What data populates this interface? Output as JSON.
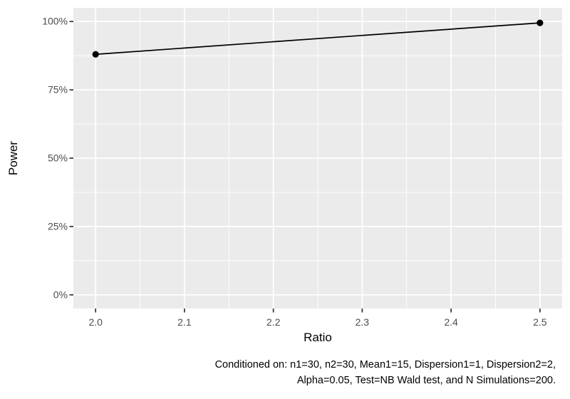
{
  "chart_data": {
    "type": "line",
    "xlabel": "Ratio",
    "ylabel": "Power",
    "x": [
      2.0,
      2.5
    ],
    "series": [
      {
        "name": "Power",
        "values_pct": [
          88,
          99.5
        ],
        "color": "#000000"
      }
    ],
    "x_tick_values": [
      2.0,
      2.1,
      2.2,
      2.3,
      2.4,
      2.5
    ],
    "x_tick_labels": [
      "2.0",
      "2.1",
      "2.2",
      "2.3",
      "2.4",
      "2.5"
    ],
    "y_tick_values_pct": [
      0,
      25,
      50,
      75,
      100
    ],
    "y_tick_labels": [
      "0%",
      "25%",
      "50%",
      "75%",
      "100%"
    ],
    "x_minor_values": [
      2.05,
      2.15,
      2.25,
      2.35,
      2.45
    ],
    "y_minor_values_pct": [
      12.5,
      37.5,
      62.5,
      87.5
    ],
    "xlim_expanded": [
      1.975,
      2.525
    ],
    "ylim_expanded_pct": [
      -5,
      105
    ],
    "grid": "major+minor",
    "legend": "none",
    "caption_lines": [
      "Conditioned on: n1=30, n2=30, Mean1=15, Dispersion1=1, Dispersion2=2,",
      "Alpha=0.05, Test=NB Wald test, and N Simulations=200."
    ],
    "colors": {
      "panel_background": "#EBEBEB",
      "gridline": "#FFFFFF",
      "axis_tick": "#333333",
      "tick_label": "#4D4D4D",
      "axis_title": "#000000",
      "series": "#000000",
      "caption": "#000000",
      "figure_background": "#FFFFFF"
    }
  }
}
